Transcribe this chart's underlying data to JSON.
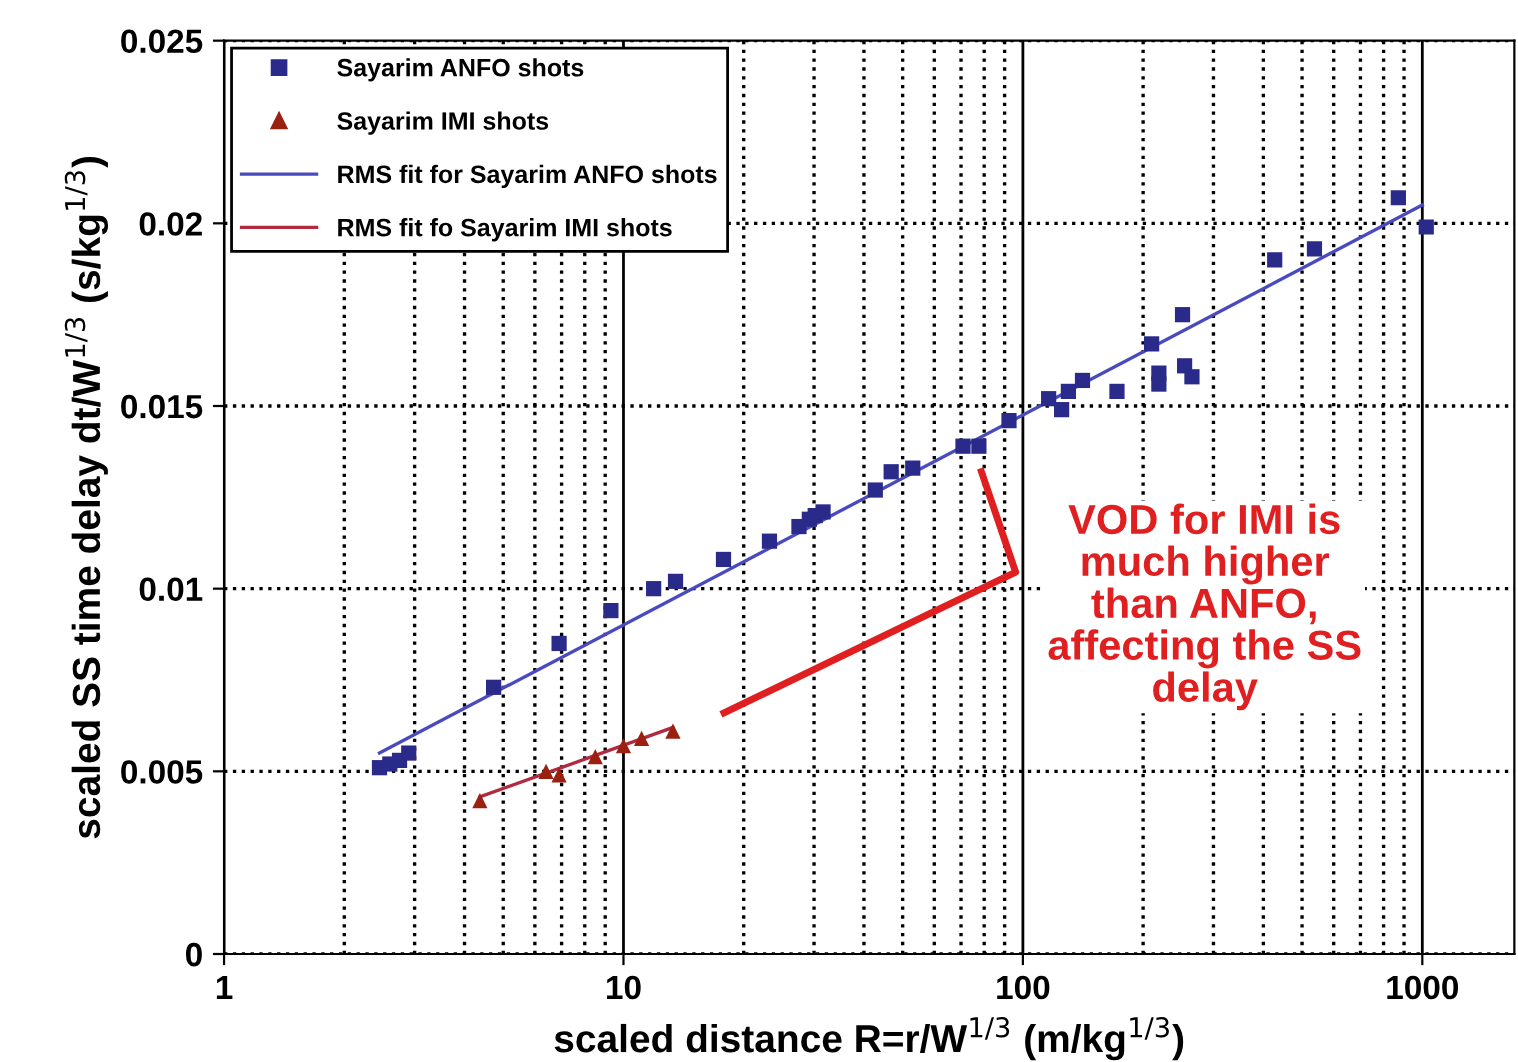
{
  "chart_data": {
    "type": "scatter",
    "xlabel": "scaled distance R=r/W$^{1/3}$ (m/kg$^{1/3}$)",
    "ylabel": "scaled SS time delay dt/W$^{1/3}$ (s/kg$^{1/3}$)",
    "log": "x",
    "xlim": [
      1,
      1700
    ],
    "xticks": [
      1,
      10,
      100,
      1000
    ],
    "ylim": [
      0,
      0.025
    ],
    "yticks": [
      0,
      0.005,
      0.01,
      0.015,
      0.02,
      0.025
    ],
    "grid": true,
    "legend": "top left",
    "series": [
      {
        "name": "Sayarim ANFO shots",
        "marker": "square",
        "color": "#2a2a8a",
        "x": [
          2.45,
          2.6,
          2.75,
          2.9,
          4.73,
          6.9,
          9.3,
          11.9,
          13.5,
          17.8,
          23.2,
          27.5,
          29.2,
          30.2,
          31.6,
          42.7,
          46.8,
          53,
          70.8,
          77.6,
          92.3,
          116,
          125,
          130,
          141,
          172,
          210,
          219,
          219,
          251,
          254,
          265,
          427,
          537,
          871,
          1023
        ],
        "values": [
          0.0051,
          0.0052,
          0.0053,
          0.0055,
          0.0073,
          0.0085,
          0.0094,
          0.01,
          0.0102,
          0.0108,
          0.0113,
          0.0117,
          0.0119,
          0.012,
          0.0121,
          0.0127,
          0.0132,
          0.0133,
          0.0139,
          0.0139,
          0.0146,
          0.0152,
          0.0149,
          0.0154,
          0.0157,
          0.0154,
          0.0167,
          0.0159,
          0.0156,
          0.0175,
          0.0161,
          0.0158,
          0.019,
          0.0193,
          0.0207,
          0.0199
        ]
      },
      {
        "name": "Sayarim IMI shots",
        "marker": "triangle",
        "color": "#9a2010",
        "x": [
          4.37,
          6.4,
          6.9,
          8.5,
          10,
          11.1,
          13.3
        ],
        "values": [
          0.0042,
          0.005,
          0.0049,
          0.0054,
          0.0057,
          0.0059,
          0.0061
        ]
      },
      {
        "name": "RMS fit for Sayarim ANFO shots",
        "type": "line",
        "color": "#4a4ac0",
        "x": [
          2.45,
          1000
        ],
        "values": [
          0.0055,
          0.0205
        ]
      },
      {
        "name": "RMS fit fo Sayarim IMI shots",
        "type": "line",
        "color": "#b02a40",
        "x": [
          4.37,
          13.3
        ],
        "values": [
          0.0043,
          0.0062
        ]
      }
    ],
    "annotations": [
      "VOD for IMI is\nmuch higher\nthan ANFO,\naffecting the SS\ndelay"
    ]
  }
}
